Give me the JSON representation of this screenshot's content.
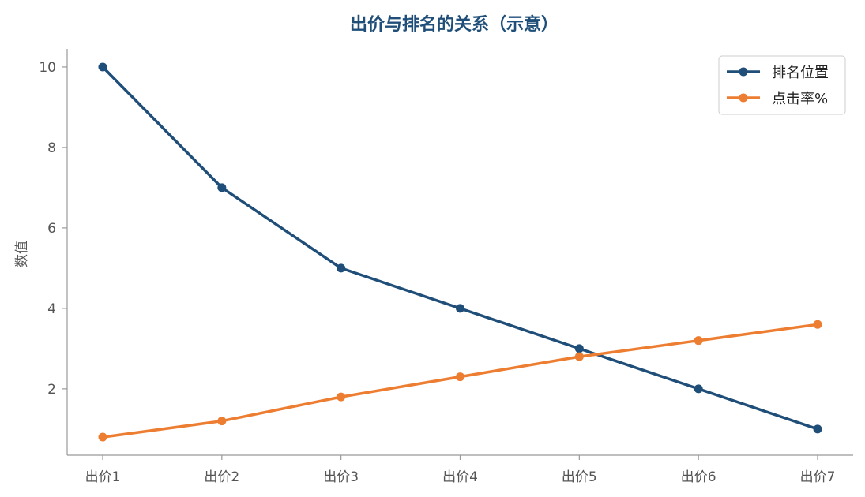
{
  "chart_data": {
    "type": "line",
    "title": "出价与排名的关系（示意）",
    "xlabel": "",
    "ylabel": "数值",
    "categories": [
      "出价1",
      "出价2",
      "出价3",
      "出价4",
      "出价5",
      "出价6",
      "出价7"
    ],
    "ylim": [
      0.35,
      10.45
    ],
    "yticks": [
      2,
      4,
      6,
      8,
      10
    ],
    "grid": false,
    "legend_position": "top-right",
    "series": [
      {
        "name": "排名位置",
        "color": "#1f4e79",
        "marker": "circle",
        "values": [
          10,
          7,
          5,
          4,
          3,
          2,
          1
        ]
      },
      {
        "name": "点击率%",
        "color": "#ed7d31",
        "marker": "circle",
        "values": [
          0.8,
          1.2,
          1.8,
          2.3,
          2.8,
          3.2,
          3.6
        ]
      }
    ]
  }
}
